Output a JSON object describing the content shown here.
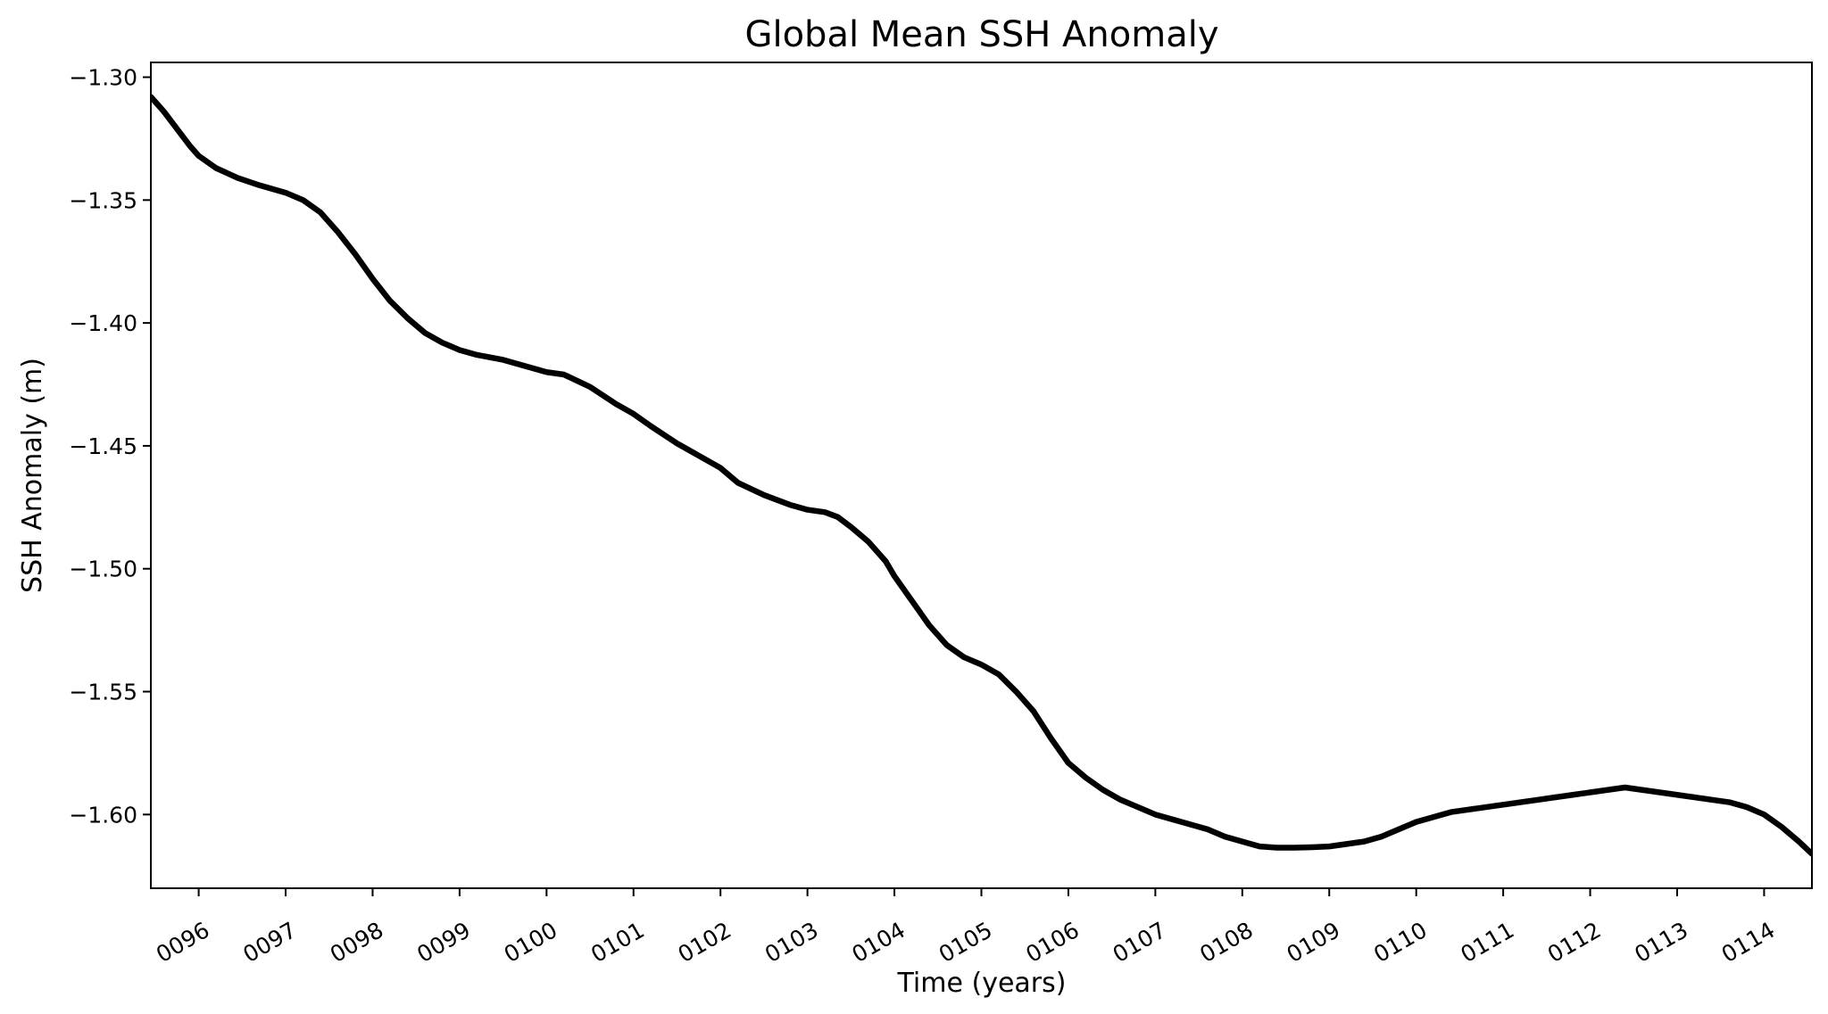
{
  "chart_data": {
    "type": "line",
    "title": "Global Mean SSH Anomaly",
    "xlabel": "Time (years)",
    "ylabel": "SSH Anomaly (m)",
    "xlim": [
      95.45,
      114.55
    ],
    "ylim": [
      -1.63,
      -1.294
    ],
    "yticks": [
      -1.3,
      -1.35,
      -1.4,
      -1.45,
      -1.5,
      -1.55,
      -1.6
    ],
    "ytick_labels": [
      "−1.30",
      "−1.35",
      "−1.40",
      "−1.45",
      "−1.50",
      "−1.55",
      "−1.60"
    ],
    "xticks": [
      96,
      97,
      98,
      99,
      100,
      101,
      102,
      103,
      104,
      105,
      106,
      107,
      108,
      109,
      110,
      111,
      112,
      113,
      114
    ],
    "xtick_labels": [
      "0096",
      "0097",
      "0098",
      "0099",
      "0100",
      "0101",
      "0102",
      "0103",
      "0104",
      "0105",
      "0106",
      "0107",
      "0108",
      "0109",
      "0110",
      "0111",
      "0112",
      "0113",
      "0114"
    ],
    "grid": false,
    "series": [
      {
        "name": "SSH anomaly",
        "color": "#000000",
        "x": [
          95.45,
          95.6,
          95.75,
          95.9,
          96.0,
          96.2,
          96.45,
          96.7,
          97.0,
          97.2,
          97.4,
          97.6,
          97.8,
          98.0,
          98.2,
          98.4,
          98.6,
          98.8,
          99.0,
          99.2,
          99.5,
          99.8,
          100.0,
          100.2,
          100.5,
          100.8,
          101.0,
          101.2,
          101.5,
          101.8,
          102.0,
          102.2,
          102.5,
          102.8,
          103.0,
          103.2,
          103.35,
          103.5,
          103.7,
          103.9,
          104.0,
          104.2,
          104.4,
          104.6,
          104.8,
          105.0,
          105.2,
          105.4,
          105.6,
          105.8,
          106.0,
          106.2,
          106.4,
          106.6,
          106.8,
          107.0,
          107.2,
          107.4,
          107.6,
          107.8,
          108.0,
          108.2,
          108.4,
          108.6,
          108.8,
          109.0,
          109.2,
          109.4,
          109.6,
          109.8,
          110.0,
          110.2,
          110.4,
          110.6,
          110.8,
          111.0,
          111.2,
          111.4,
          111.6,
          111.8,
          112.0,
          112.2,
          112.4,
          112.6,
          112.8,
          113.0,
          113.2,
          113.4,
          113.6,
          113.8,
          114.0,
          114.2,
          114.4,
          114.55
        ],
        "y": [
          -1.308,
          -1.314,
          -1.321,
          -1.328,
          -1.332,
          -1.337,
          -1.341,
          -1.344,
          -1.347,
          -1.35,
          -1.355,
          -1.363,
          -1.372,
          -1.382,
          -1.391,
          -1.398,
          -1.404,
          -1.408,
          -1.411,
          -1.413,
          -1.415,
          -1.418,
          -1.42,
          -1.421,
          -1.426,
          -1.433,
          -1.437,
          -1.442,
          -1.449,
          -1.455,
          -1.459,
          -1.465,
          -1.47,
          -1.474,
          -1.476,
          -1.477,
          -1.479,
          -1.483,
          -1.489,
          -1.497,
          -1.503,
          -1.513,
          -1.523,
          -1.531,
          -1.536,
          -1.539,
          -1.543,
          -1.55,
          -1.558,
          -1.569,
          -1.579,
          -1.585,
          -1.59,
          -1.594,
          -1.597,
          -1.6,
          -1.602,
          -1.604,
          -1.606,
          -1.609,
          -1.611,
          -1.613,
          -1.6135,
          -1.6135,
          -1.6133,
          -1.613,
          -1.612,
          -1.611,
          -1.609,
          -1.606,
          -1.603,
          -1.601,
          -1.599,
          -1.598,
          -1.597,
          -1.596,
          -1.595,
          -1.594,
          -1.593,
          -1.592,
          -1.591,
          -1.59,
          -1.589,
          -1.59,
          -1.591,
          -1.592,
          -1.593,
          -1.594,
          -1.595,
          -1.597,
          -1.6,
          -1.605,
          -1.611,
          -1.616
        ]
      }
    ]
  }
}
